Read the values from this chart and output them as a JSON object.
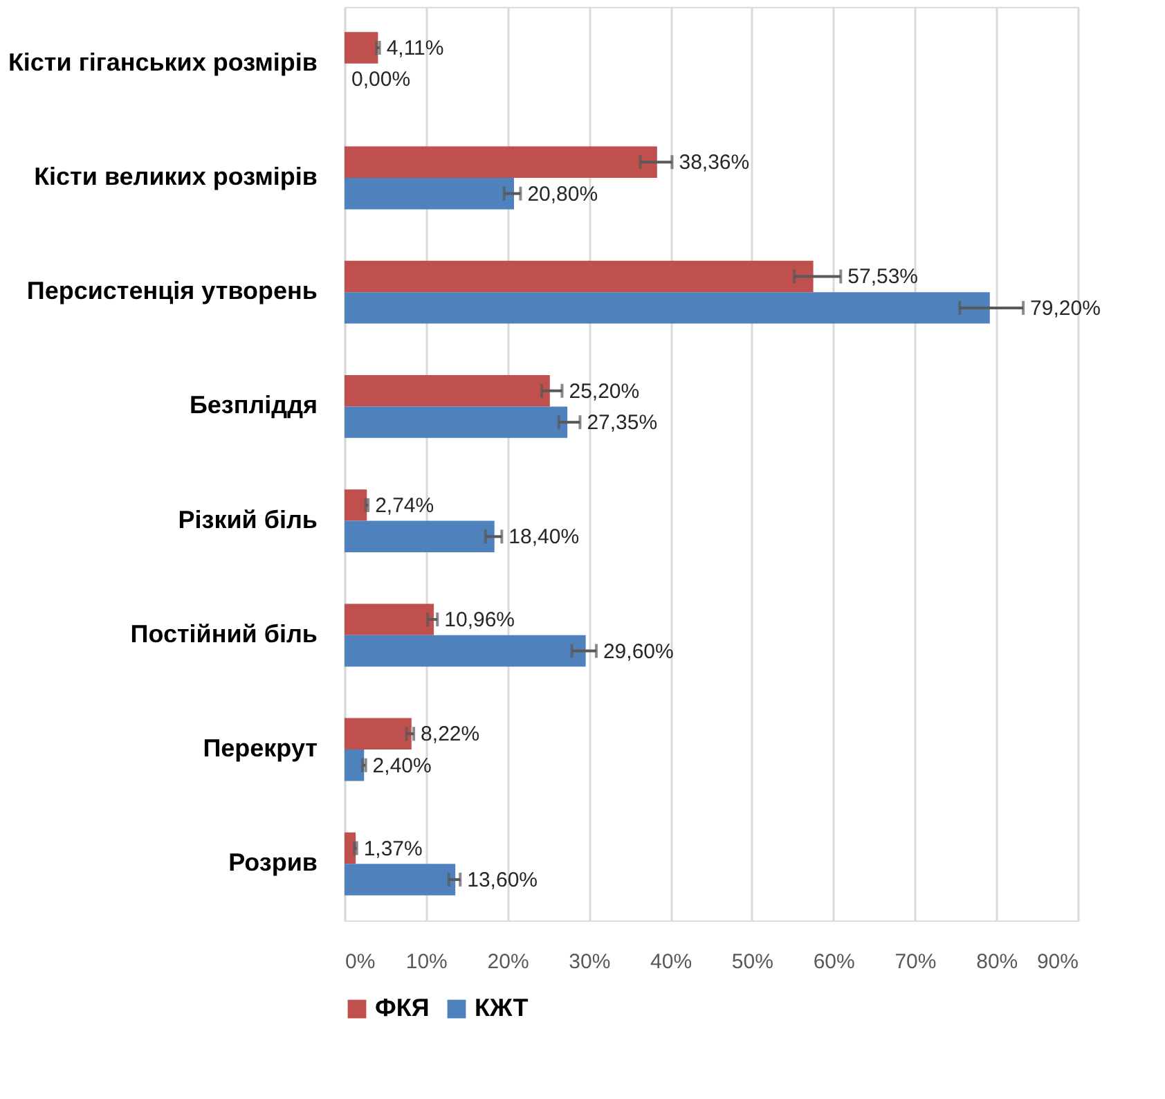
{
  "chart_data": {
    "type": "bar",
    "orientation": "horizontal",
    "categories": [
      "Кісти гіганських розмірів",
      "Кісти великих розмірів",
      "Персистенція утворень",
      "Безпліддя",
      "Різкий біль",
      "Постійний біль",
      "Перекрут",
      "Розрив"
    ],
    "series": [
      {
        "name": "ФКЯ",
        "color": "#c0504d",
        "values": [
          4.11,
          38.36,
          57.53,
          25.2,
          2.74,
          10.96,
          8.22,
          1.37
        ],
        "errors": [
          [
            3.9,
            4.3
          ],
          [
            36.3,
            40.2
          ],
          [
            55.2,
            60.9
          ],
          [
            24.2,
            26.7
          ],
          [
            2.6,
            2.9
          ],
          [
            10.2,
            11.4
          ],
          [
            7.6,
            8.5
          ],
          [
            1.2,
            1.5
          ]
        ],
        "value_labels": [
          "4,11%",
          "38,36%",
          "57,53%",
          "25,20%",
          "2,74%",
          "10,96%",
          "8,22%",
          "1,37%"
        ]
      },
      {
        "name": "КЖТ",
        "color": "#4f81bd",
        "values": [
          0,
          20.8,
          79.2,
          27.35,
          18.4,
          29.6,
          2.4,
          13.6
        ],
        "errors": [
          null,
          [
            19.6,
            21.6
          ],
          [
            75.5,
            83.3
          ],
          [
            26.3,
            28.9
          ],
          [
            17.3,
            19.3
          ],
          [
            27.9,
            30.9
          ],
          [
            2.2,
            2.6
          ],
          [
            12.8,
            14.2
          ]
        ],
        "value_labels": [
          "0,00%",
          "20,80%",
          "79,20%",
          "27,35%",
          "18,40%",
          "29,60%",
          "2,40%",
          "13,60%"
        ]
      }
    ],
    "xlim": [
      0,
      90
    ],
    "xticks": [
      {
        "value": 0,
        "label": "0%"
      },
      {
        "value": 10,
        "label": "10%"
      },
      {
        "value": 20,
        "label": "20%"
      },
      {
        "value": 30,
        "label": "30%"
      },
      {
        "value": 40,
        "label": "40%"
      },
      {
        "value": 50,
        "label": "50%"
      },
      {
        "value": 60,
        "label": "60%"
      },
      {
        "value": 70,
        "label": "70%"
      },
      {
        "value": 80,
        "label": "80%"
      },
      {
        "value": 90,
        "label": "90%"
      }
    ],
    "grid": "x",
    "legend": "bottom"
  }
}
